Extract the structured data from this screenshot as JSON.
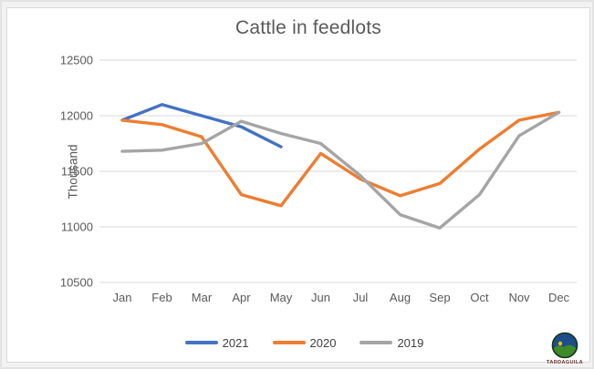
{
  "window": {
    "background": "#ffffff",
    "frame_border_color": "#d9d9d9",
    "outer_border_color": "#e3e3e3"
  },
  "chart_data": {
    "type": "line",
    "title": "Cattle in feedlots",
    "xlabel": "",
    "ylabel": "Thousand",
    "categories": [
      "Jan",
      "Feb",
      "Mar",
      "Apr",
      "May",
      "Jun",
      "Jul",
      "Aug",
      "Sep",
      "Oct",
      "Nov",
      "Dec"
    ],
    "yticks": [
      12500,
      12000,
      11500,
      11000,
      10500
    ],
    "ylim": [
      10500,
      12500
    ],
    "grid": true,
    "gridline_color": "#d9d9d9",
    "legend_position": "bottom",
    "series": [
      {
        "name": "2021",
        "color": "#4472C4",
        "values": [
          11960,
          12100,
          12000,
          11900,
          11720,
          null,
          null,
          null,
          null,
          null,
          null,
          null
        ]
      },
      {
        "name": "2020",
        "color": "#ED7D31",
        "values": [
          11960,
          11920,
          11810,
          11290,
          11190,
          11660,
          11430,
          11280,
          11390,
          11700,
          11960,
          12030
        ]
      },
      {
        "name": "2019",
        "color": "#A5A5A5",
        "values": [
          11680,
          11690,
          11750,
          11950,
          11840,
          11750,
          11460,
          11110,
          10990,
          11290,
          11820,
          12030
        ]
      }
    ]
  },
  "branding": {
    "logo_text": "TARDAGUILA",
    "logo_sky_color": "#1d4e89",
    "logo_hill_color": "#3e8a28",
    "logo_sun_color": "#e8c01f",
    "logo_outline_color": "#16331c"
  }
}
